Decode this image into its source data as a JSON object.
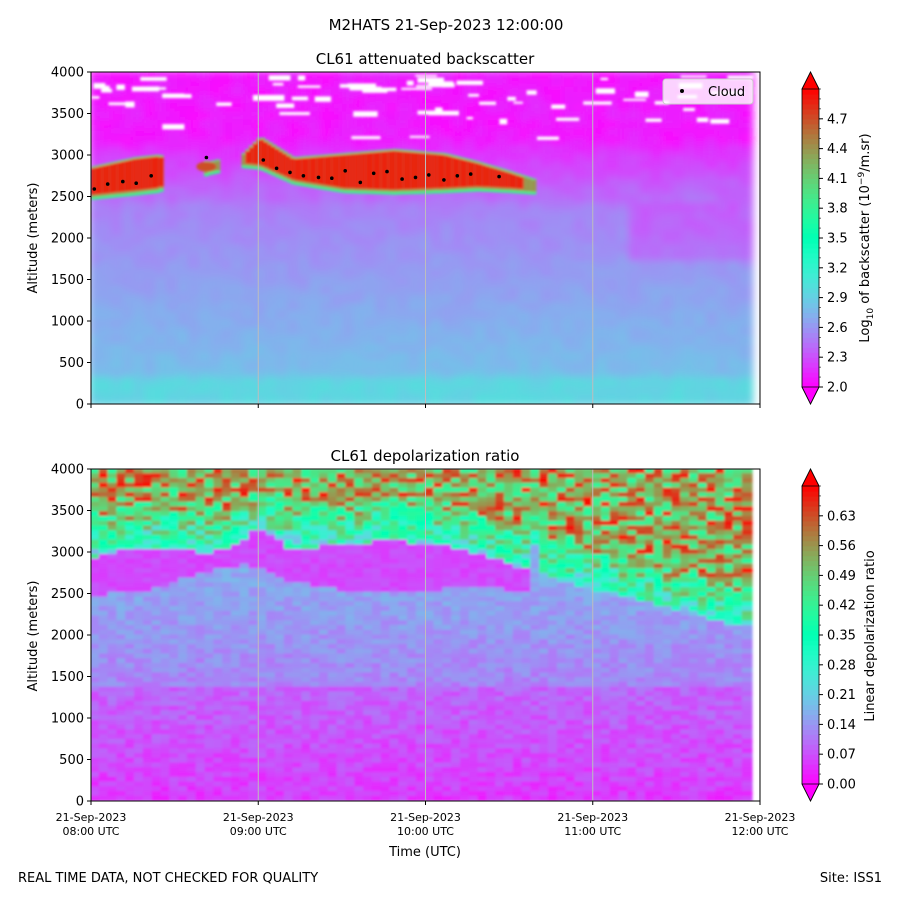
{
  "figure": {
    "suptitle": "M2HATS 21-Sep-2023 12:00:00",
    "footer_left": "REAL TIME DATA, NOT CHECKED FOR QUALITY",
    "footer_right": "Site: ISS1",
    "xlabel": "Time (UTC)",
    "xticks": [
      {
        "date": "21-Sep-2023",
        "time": "08:00 UTC"
      },
      {
        "date": "21-Sep-2023",
        "time": "09:00 UTC"
      },
      {
        "date": "21-Sep-2023",
        "time": "10:00 UTC"
      },
      {
        "date": "21-Sep-2023",
        "time": "11:00 UTC"
      },
      {
        "date": "21-Sep-2023",
        "time": "12:00 UTC"
      }
    ]
  },
  "chart_data": [
    {
      "type": "heatmap",
      "title": "CL61 attenuated backscatter",
      "ylabel": "Altitude (meters)",
      "xlabel": "",
      "x_range_hours_utc": [
        8.0,
        12.0
      ],
      "data_x_end_hours_utc": 11.95,
      "ylim": [
        0,
        4000
      ],
      "yticks": [
        "0",
        "500",
        "1000",
        "1500",
        "2000",
        "2500",
        "3000",
        "3500",
        "4000"
      ],
      "grid_times": [
        9,
        10,
        11
      ],
      "colorbar": {
        "label": "Log10 of backscatter (10^-9/m.sr)",
        "label_main": "Log",
        "label_sub": "10",
        "label_mid": " of backscatter (10",
        "label_sup": "−9",
        "label_end": "/m.sr)",
        "range": [
          2.0,
          5.0
        ],
        "ticks": [
          "2.0",
          "2.3",
          "2.6",
          "2.9",
          "3.2",
          "3.5",
          "3.8",
          "4.1",
          "4.4",
          "4.7"
        ],
        "colormap": "rainbow",
        "extend": "both"
      },
      "cloud_layer": [
        {
          "t": 8.0,
          "base": 2520,
          "top": 2840
        },
        {
          "t": 8.25,
          "base": 2570,
          "top": 2950
        },
        {
          "t": 8.38,
          "base": 2600,
          "top": 2980
        },
        {
          "t": 8.7,
          "base": 2820,
          "top": 2900
        },
        {
          "t": 8.9,
          "base": 2900,
          "top": 3000
        },
        {
          "t": 9.0,
          "base": 2880,
          "top": 3200
        },
        {
          "t": 9.2,
          "base": 2700,
          "top": 2950
        },
        {
          "t": 9.5,
          "base": 2600,
          "top": 3000
        },
        {
          "t": 9.8,
          "base": 2580,
          "top": 3050
        },
        {
          "t": 10.1,
          "base": 2600,
          "top": 3000
        },
        {
          "t": 10.3,
          "base": 2620,
          "top": 2900
        },
        {
          "t": 10.5,
          "base": 2600,
          "top": 2780
        },
        {
          "t": 10.65,
          "base": 2580,
          "top": 2680
        }
      ],
      "legend": {
        "label": "Cloud",
        "position": "upper right"
      },
      "cloud_points": [
        {
          "t": 8.02,
          "alt": 2590
        },
        {
          "t": 8.1,
          "alt": 2650
        },
        {
          "t": 8.19,
          "alt": 2680
        },
        {
          "t": 8.27,
          "alt": 2660
        },
        {
          "t": 8.36,
          "alt": 2750
        },
        {
          "t": 8.69,
          "alt": 2970
        },
        {
          "t": 9.03,
          "alt": 2940
        },
        {
          "t": 9.11,
          "alt": 2840
        },
        {
          "t": 9.19,
          "alt": 2790
        },
        {
          "t": 9.27,
          "alt": 2750
        },
        {
          "t": 9.36,
          "alt": 2730
        },
        {
          "t": 9.44,
          "alt": 2720
        },
        {
          "t": 9.52,
          "alt": 2810
        },
        {
          "t": 9.61,
          "alt": 2670
        },
        {
          "t": 9.69,
          "alt": 2780
        },
        {
          "t": 9.77,
          "alt": 2800
        },
        {
          "t": 9.86,
          "alt": 2710
        },
        {
          "t": 9.94,
          "alt": 2730
        },
        {
          "t": 10.02,
          "alt": 2760
        },
        {
          "t": 10.11,
          "alt": 2700
        },
        {
          "t": 10.19,
          "alt": 2750
        },
        {
          "t": 10.27,
          "alt": 2770
        },
        {
          "t": 10.44,
          "alt": 2740
        }
      ]
    },
    {
      "type": "heatmap",
      "title": "CL61 depolarization ratio",
      "ylabel": "Altitude (meters)",
      "xlabel": "Time (UTC)",
      "x_range_hours_utc": [
        8.0,
        12.0
      ],
      "data_x_end_hours_utc": 11.95,
      "ylim": [
        0,
        4000
      ],
      "yticks": [
        "0",
        "500",
        "1000",
        "1500",
        "2000",
        "2500",
        "3000",
        "3500",
        "4000"
      ],
      "grid_times": [
        9,
        10,
        11
      ],
      "colorbar": {
        "label": "Linear depolarization ratio",
        "range": [
          0.0,
          0.7
        ],
        "ticks": [
          "0.00",
          "0.07",
          "0.14",
          "0.21",
          "0.28",
          "0.35",
          "0.42",
          "0.49",
          "0.56",
          "0.63"
        ],
        "colormap": "rainbow",
        "extend": "both"
      }
    }
  ]
}
